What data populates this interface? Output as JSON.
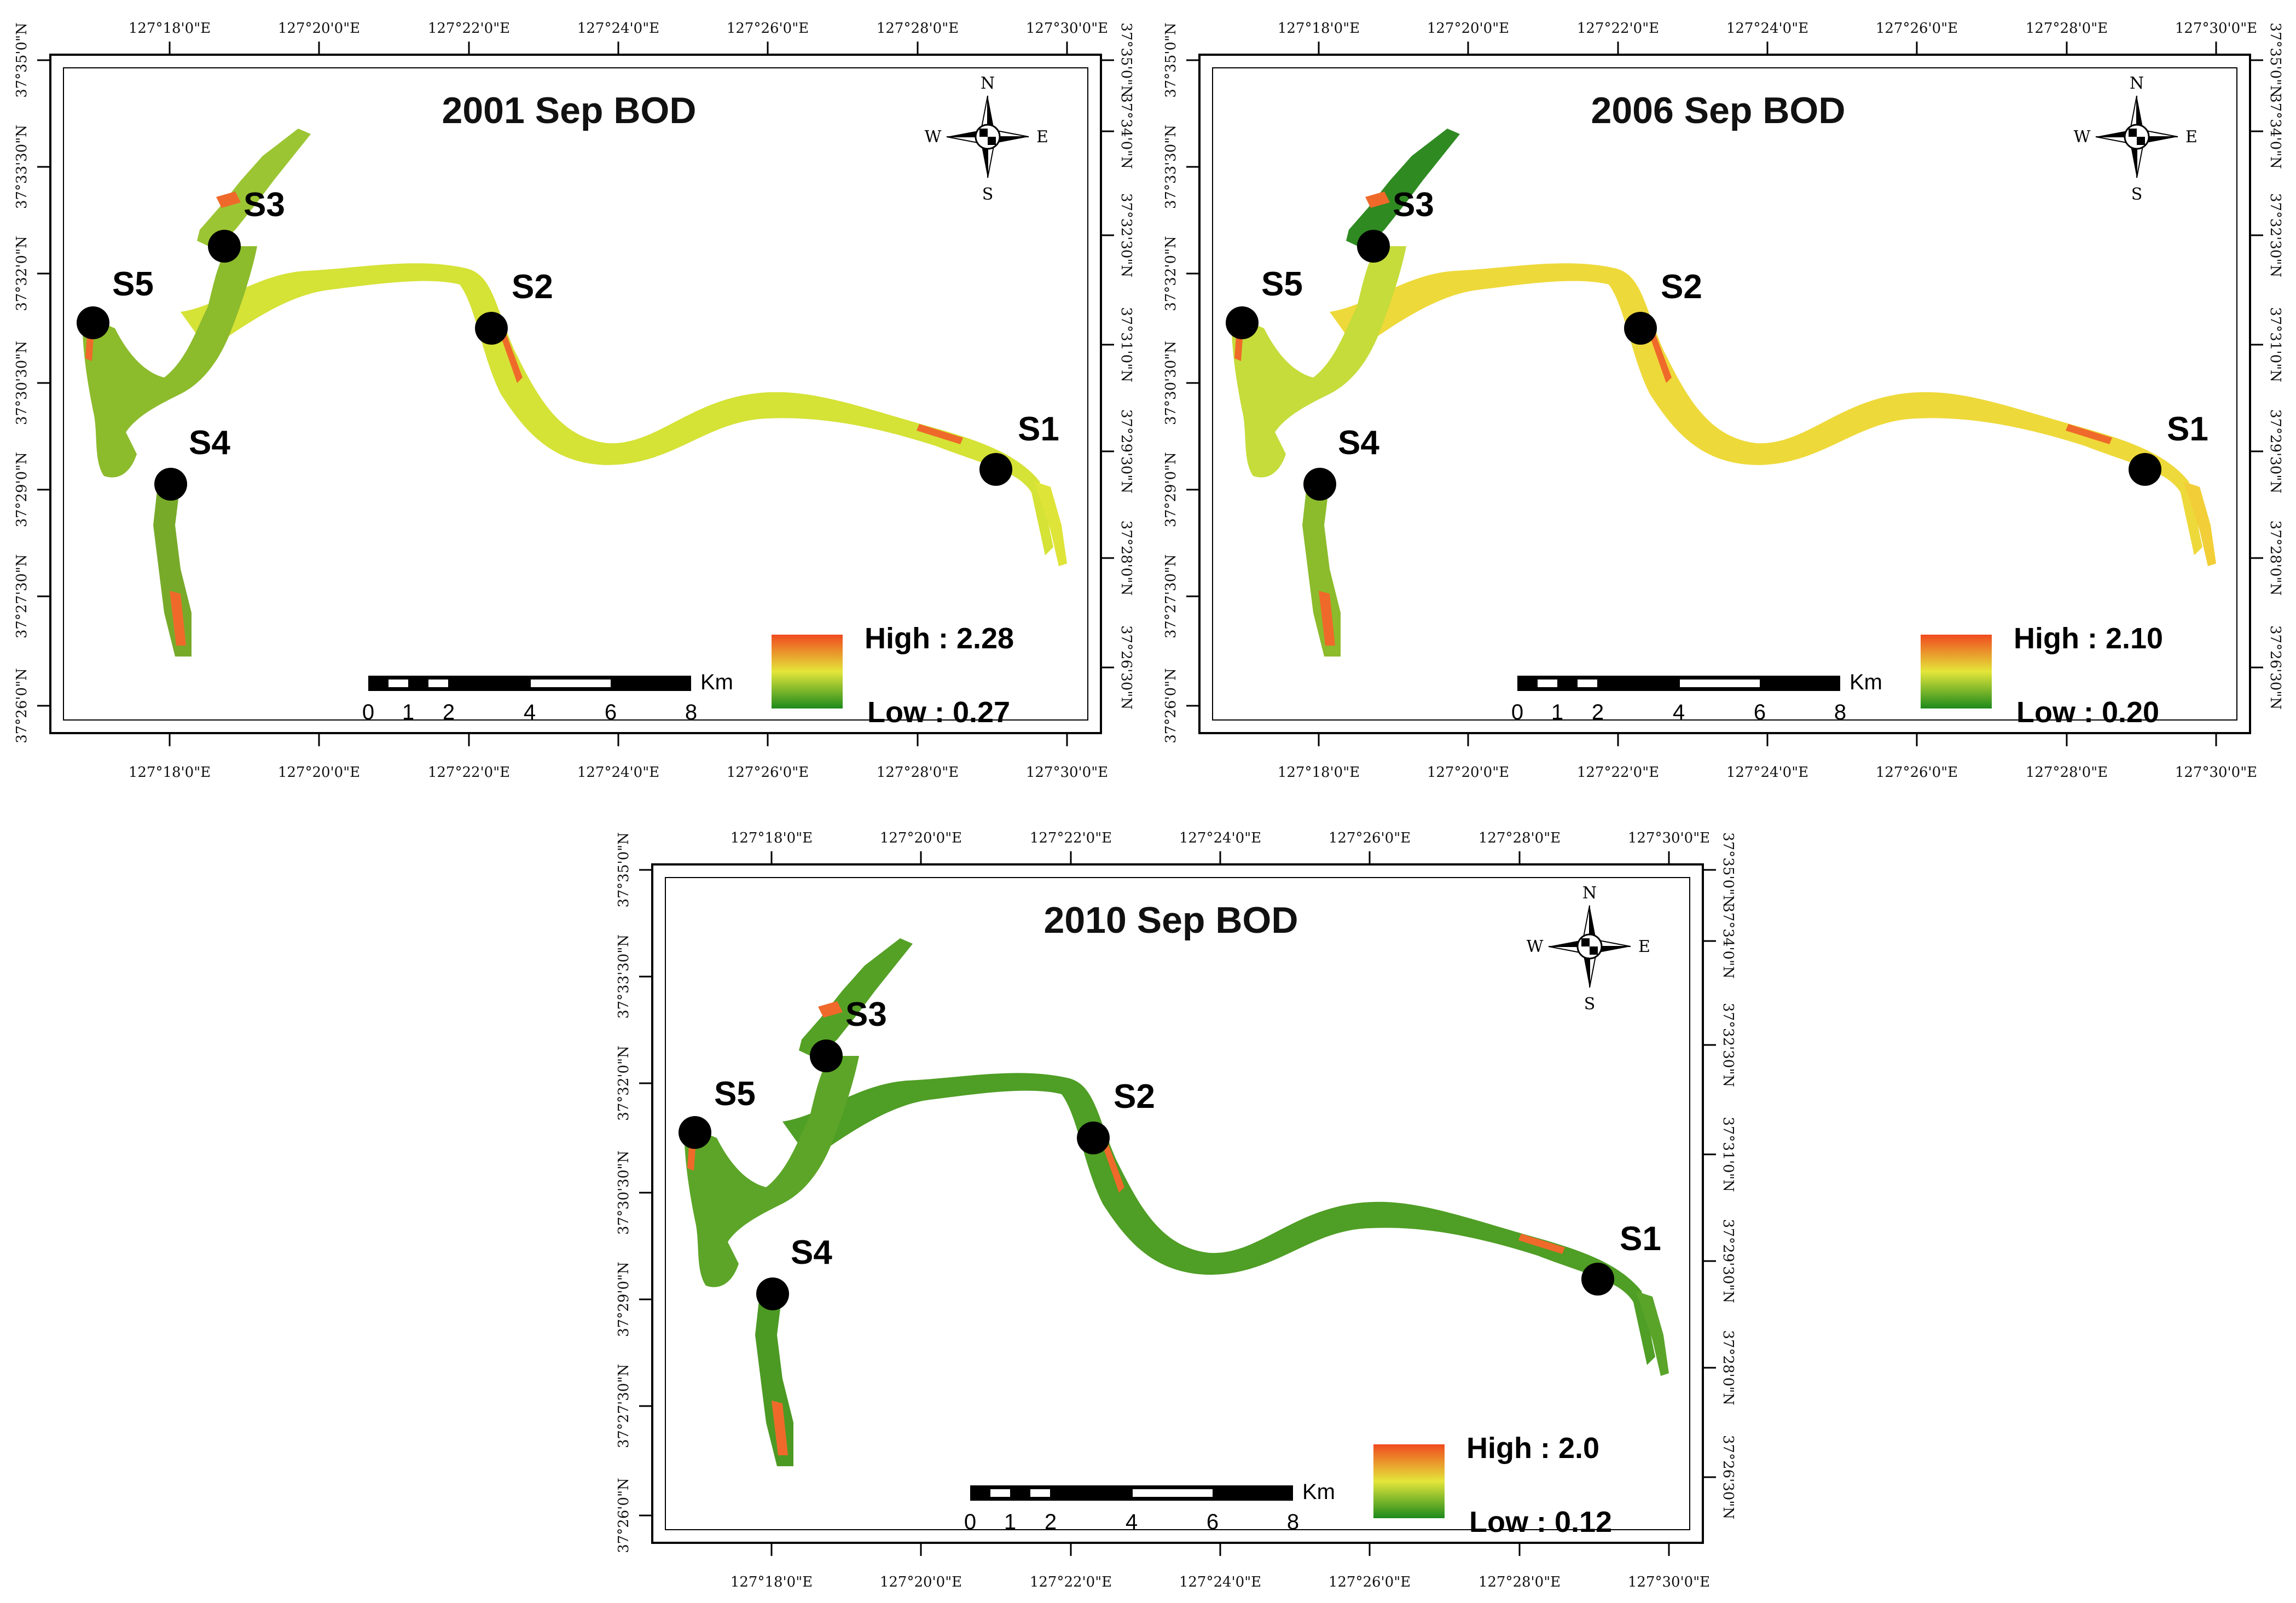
{
  "colors": {
    "high": "#f04a1f",
    "mid": "#e4e63a",
    "low": "#1c8a1c",
    "frame": "#000000",
    "station": "#000000"
  },
  "ticks": {
    "lon": [
      "127°18'0\"E",
      "127°20'0\"E",
      "127°22'0\"E",
      "127°24'0\"E",
      "127°26'0\"E",
      "127°28'0\"E",
      "127°30'0\"E"
    ],
    "lat_left": [
      "37°35'0\"N",
      "37°33'30\"N",
      "37°32'0\"N",
      "37°30'30\"N",
      "37°29'0\"N",
      "37°27'30\"N",
      "37°26'0\"N"
    ],
    "lat_right": [
      "37°35'0\"N",
      "37°34'0\"N",
      "37°32'30\"N",
      "37°31'0\"N",
      "37°29'30\"N",
      "37°28'0\"N",
      "37°26'30\"N"
    ]
  },
  "compass": {
    "n": "N",
    "s": "S",
    "w": "W",
    "e": "E"
  },
  "scale_bar": {
    "unit": "Km",
    "labels": [
      "0",
      "1",
      "2",
      "4",
      "6",
      "8"
    ]
  },
  "stations": [
    "S1",
    "S2",
    "S3",
    "S4",
    "S5"
  ],
  "maps": [
    {
      "title": "2001 Sep BOD",
      "legend_high": "High : 2.28",
      "legend_low": "Low : 0.27",
      "river": {
        "main": "#d5e236",
        "upper": "#8cbb2c",
        "tribN": "#9cc533",
        "tribS": "#78aa2a",
        "edge": "#ef6a2a",
        "downstream": "#dfe438"
      }
    },
    {
      "title": "2006 Sep BOD",
      "legend_high": "High : 2.10",
      "legend_low": "Low : 0.20",
      "river": {
        "main": "#eed93a",
        "upper": "#c5dc3a",
        "tribN": "#2f8a22",
        "tribS": "#8cbb2c",
        "edge": "#ef6a2a",
        "downstream": "#f2cf38"
      }
    },
    {
      "title": "2010 Sep BOD",
      "legend_high": "High : 2.0",
      "legend_low": "Low : 0.12",
      "river": {
        "main": "#4f9e25",
        "upper": "#5ca528",
        "tribN": "#55a126",
        "tribS": "#4c9a24",
        "edge": "#ef6a2a",
        "downstream": "#5aa42a"
      }
    }
  ]
}
